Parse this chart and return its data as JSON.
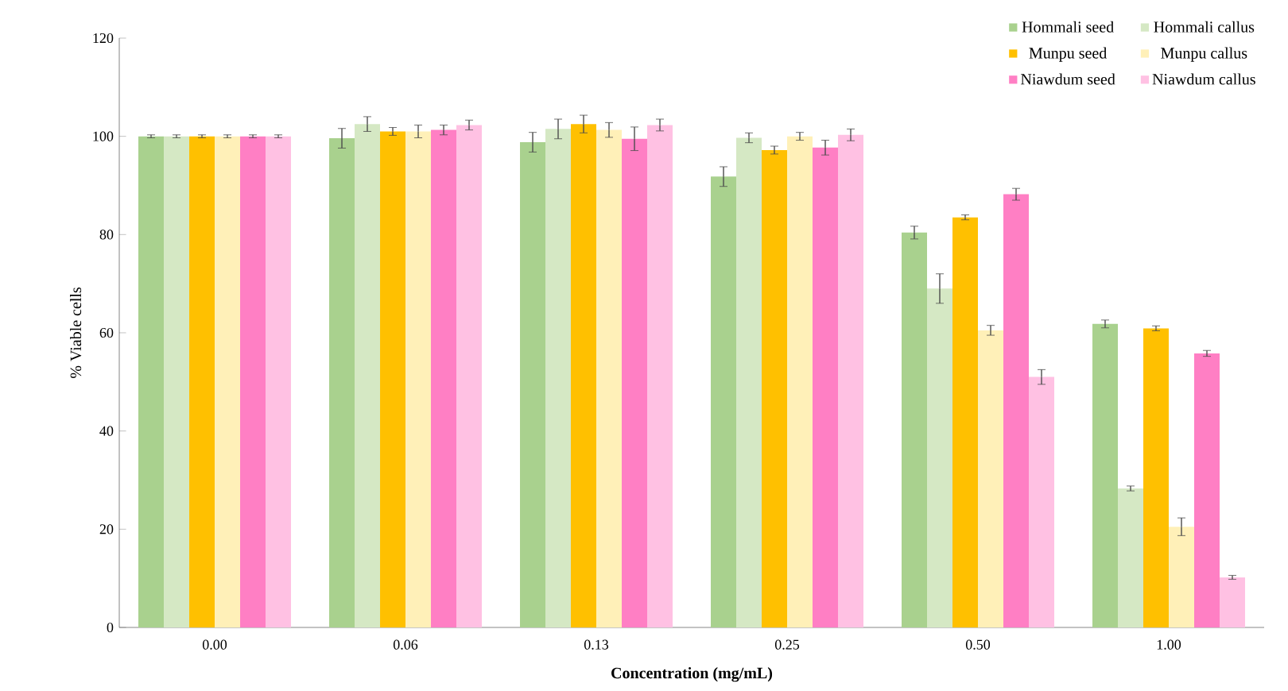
{
  "chart_data": {
    "type": "bar",
    "xlabel": "Concentration (mg/mL)",
    "ylabel": "% Viable cells",
    "categories": [
      "0.00",
      "0.06",
      "0.13",
      "0.25",
      "0.50",
      "1.00"
    ],
    "series": [
      {
        "name": "Hommali seed",
        "color": "#a9d18e",
        "values": [
          100,
          99.6,
          98.8,
          91.8,
          80.4,
          61.8
        ],
        "errors": [
          0.3,
          2,
          2,
          2,
          1.3,
          0.8
        ]
      },
      {
        "name": "Hommali callus",
        "color": "#d5e8c4",
        "values": [
          100,
          102.5,
          101.5,
          99.7,
          69,
          28.3
        ],
        "errors": [
          0.3,
          1.5,
          2,
          1,
          3,
          0.5
        ]
      },
      {
        "name": "Munpu seed",
        "color": "#ffc000",
        "values": [
          100,
          101,
          102.5,
          97.2,
          83.5,
          60.9
        ],
        "errors": [
          0.3,
          0.8,
          1.8,
          0.8,
          0.5,
          0.5
        ]
      },
      {
        "name": "Munpu callus",
        "color": "#fff0b8",
        "values": [
          100,
          101,
          101.3,
          100,
          60.5,
          20.5
        ],
        "errors": [
          0.3,
          1.3,
          1.5,
          0.8,
          1,
          1.8
        ]
      },
      {
        "name": "Niawdum seed",
        "color": "#ff7fc4",
        "values": [
          100,
          101.3,
          99.5,
          97.7,
          88.2,
          55.8
        ],
        "errors": [
          0.3,
          1,
          2.4,
          1.5,
          1.2,
          0.6
        ]
      },
      {
        "name": "Niawdum callus",
        "color": "#ffc1e3",
        "values": [
          100,
          102.3,
          102.3,
          100.3,
          51,
          10.2
        ],
        "errors": [
          0.3,
          1,
          1.2,
          1.2,
          1.5,
          0.4
        ]
      }
    ],
    "ylim": [
      0,
      120
    ],
    "yticks": [
      0,
      20,
      40,
      60,
      80,
      100,
      120
    ],
    "grid": false,
    "legend": "top right"
  }
}
